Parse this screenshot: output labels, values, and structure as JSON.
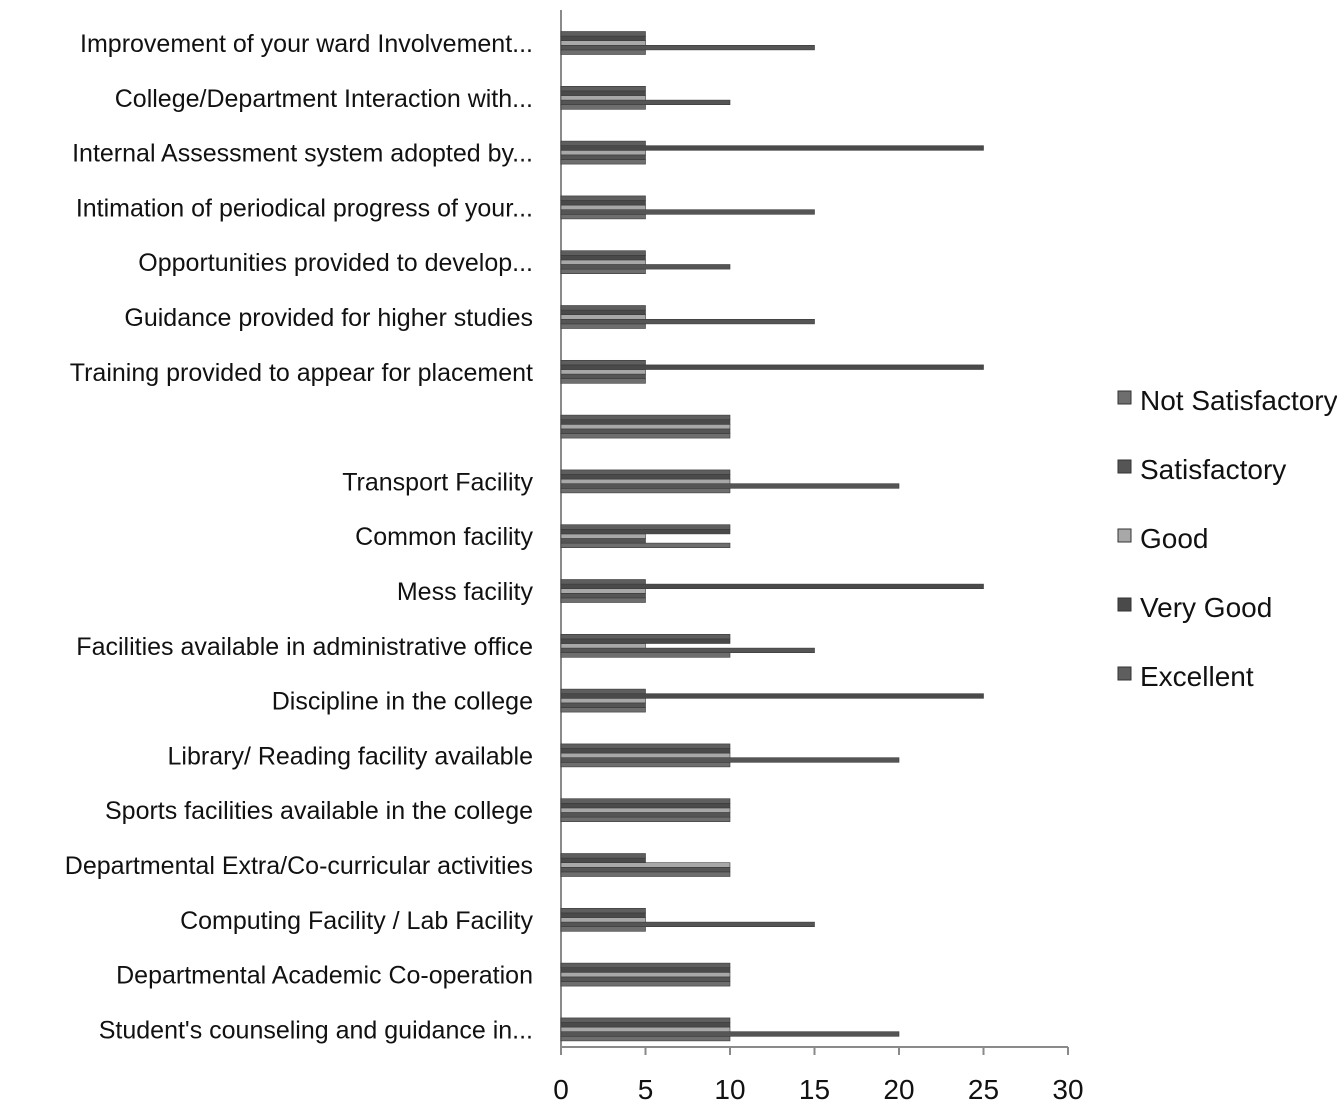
{
  "chart_data": {
    "type": "bar",
    "orientation": "horizontal",
    "stacked": false,
    "title": "",
    "xlabel": "",
    "ylabel": "",
    "xlim": [
      0,
      30
    ],
    "xticks": [
      "0",
      "5",
      "10",
      "15",
      "20",
      "25",
      "30"
    ],
    "grid": false,
    "legend_position": "right",
    "categories": [
      "Improvement  of your  ward Involvement...",
      "College/Department Interaction with...",
      "Internal Assessment system adopted by...",
      "Intimation of periodical progress of your...",
      "Opportunities provided to develop...",
      "Guidance provided for higher studies",
      "Training provided to appear for placement",
      "",
      "Transport Facility",
      "Common facility",
      "Mess facility",
      "Facilities available in administrative office",
      "Discipline in the college",
      "Library/ Reading facility available",
      "Sports facilities available in the college",
      "Departmental Extra/Co-curricular activities",
      "Computing Facility / Lab Facility",
      "Departmental Academic Co-operation",
      "Student's counseling and guidance in..."
    ],
    "series": [
      {
        "name": "Not Satisfactory",
        "color": "#6e6e6e",
        "values": [
          5,
          5,
          5,
          5,
          5,
          5,
          5,
          10,
          10,
          10,
          5,
          10,
          5,
          10,
          10,
          10,
          5,
          10,
          10
        ]
      },
      {
        "name": "Satisfactory",
        "color": "#555555",
        "values": [
          15,
          10,
          5,
          15,
          10,
          15,
          5,
          10,
          20,
          5,
          5,
          15,
          5,
          20,
          10,
          10,
          15,
          10,
          20
        ]
      },
      {
        "name": "Good",
        "color": "#a8a8a8",
        "values": [
          5,
          5,
          5,
          5,
          5,
          5,
          5,
          10,
          10,
          5,
          5,
          5,
          5,
          10,
          10,
          10,
          5,
          10,
          10
        ]
      },
      {
        "name": "Very Good",
        "color": "#4a4a4a",
        "values": [
          5,
          5,
          25,
          5,
          5,
          5,
          25,
          10,
          10,
          10,
          25,
          10,
          25,
          10,
          10,
          5,
          5,
          10,
          10
        ]
      },
      {
        "name": "Excellent",
        "color": "#5e5e5e",
        "values": [
          5,
          5,
          5,
          5,
          5,
          5,
          5,
          10,
          10,
          10,
          5,
          10,
          5,
          10,
          10,
          5,
          5,
          10,
          10
        ]
      }
    ]
  }
}
